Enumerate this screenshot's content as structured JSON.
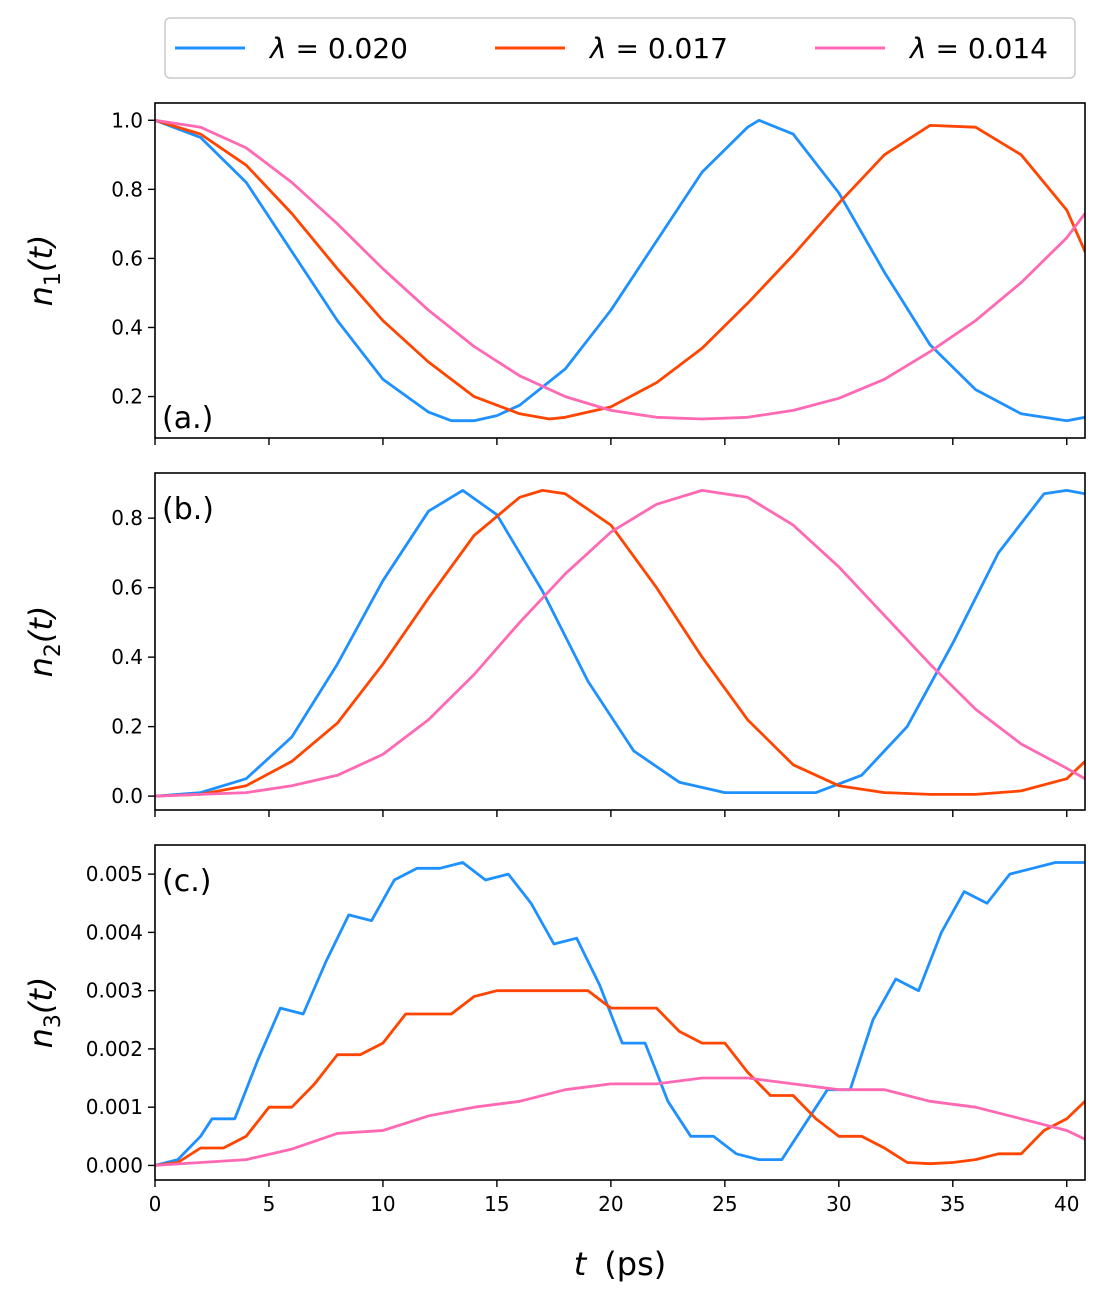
{
  "colors": {
    "s1": "#1E90FF",
    "s2": "#FF4500",
    "s3": "#FF69B4"
  },
  "chart_data": {
    "type": "line",
    "x_label_var": "t",
    "x_label_unit": "(ps)",
    "xlim": [
      0,
      40.8
    ],
    "x_ticks": [
      "0",
      "5",
      "10",
      "15",
      "20",
      "25",
      "30",
      "35",
      "40"
    ],
    "legend": {
      "placement": "top-center",
      "entries": [
        {
          "var": "λ",
          "text": " = 0.020"
        },
        {
          "var": "λ",
          "text": " = 0.017"
        },
        {
          "var": "λ",
          "text": " = 0.014"
        }
      ]
    },
    "panels": [
      {
        "label": "(a.)",
        "ylabel": {
          "var": "n",
          "sub": "1",
          "arg": "(t)"
        },
        "ylim": [
          0.08,
          1.05
        ],
        "y_ticks": [
          "0.2",
          "0.4",
          "0.6",
          "0.8",
          "1.0"
        ],
        "series": [
          {
            "name": "λ = 0.020",
            "x": [
              0,
              2,
              4,
              6,
              8,
              10,
              12,
              13,
              14,
              15,
              16,
              18,
              20,
              22,
              24,
              26,
              26.5,
              28,
              30,
              32,
              34,
              36,
              38,
              40,
              40.8
            ],
            "y": [
              1.0,
              0.95,
              0.82,
              0.62,
              0.42,
              0.25,
              0.155,
              0.13,
              0.13,
              0.145,
              0.175,
              0.28,
              0.45,
              0.65,
              0.85,
              0.98,
              1.0,
              0.96,
              0.79,
              0.56,
              0.35,
              0.22,
              0.15,
              0.13,
              0.14
            ]
          },
          {
            "name": "λ = 0.017",
            "x": [
              0,
              2,
              4,
              6,
              8,
              10,
              12,
              14,
              16,
              17.3,
              18,
              20,
              22,
              24,
              26,
              28,
              30,
              32,
              34,
              36,
              38,
              40,
              40.8
            ],
            "y": [
              1.0,
              0.96,
              0.87,
              0.73,
              0.57,
              0.42,
              0.3,
              0.2,
              0.15,
              0.135,
              0.14,
              0.17,
              0.24,
              0.34,
              0.47,
              0.61,
              0.76,
              0.9,
              0.985,
              0.98,
              0.9,
              0.74,
              0.62
            ]
          },
          {
            "name": "λ = 0.014",
            "x": [
              0,
              2,
              4,
              6,
              8,
              10,
              12,
              14,
              16,
              18,
              20,
              22,
              24,
              26,
              28,
              30,
              32,
              34,
              36,
              38,
              40,
              40.8
            ],
            "y": [
              1.0,
              0.98,
              0.92,
              0.82,
              0.7,
              0.57,
              0.45,
              0.345,
              0.26,
              0.2,
              0.16,
              0.14,
              0.135,
              0.14,
              0.16,
              0.195,
              0.25,
              0.33,
              0.42,
              0.53,
              0.66,
              0.73
            ]
          }
        ]
      },
      {
        "label": "(b.)",
        "ylabel": {
          "var": "n",
          "sub": "2",
          "arg": "(t)"
        },
        "ylim": [
          -0.04,
          0.93
        ],
        "y_ticks": [
          "0.0",
          "0.2",
          "0.4",
          "0.6",
          "0.8"
        ],
        "series": [
          {
            "name": "λ = 0.020",
            "x": [
              0,
              2,
              4,
              6,
              8,
              10,
              12,
              13.5,
              15,
              17,
              19,
              21,
              23,
              25,
              27,
              29,
              31,
              33,
              35,
              37,
              39,
              40,
              40.8
            ],
            "y": [
              0.0,
              0.01,
              0.05,
              0.17,
              0.38,
              0.62,
              0.82,
              0.88,
              0.81,
              0.59,
              0.33,
              0.13,
              0.04,
              0.01,
              0.01,
              0.01,
              0.06,
              0.2,
              0.44,
              0.7,
              0.87,
              0.88,
              0.87
            ]
          },
          {
            "name": "λ = 0.017",
            "x": [
              0,
              2,
              4,
              6,
              8,
              10,
              12,
              14,
              16,
              17,
              18,
              20,
              22,
              24,
              26,
              28,
              30,
              32,
              34,
              36,
              38,
              40,
              40.8
            ],
            "y": [
              0.0,
              0.005,
              0.03,
              0.1,
              0.21,
              0.38,
              0.57,
              0.75,
              0.86,
              0.88,
              0.87,
              0.78,
              0.6,
              0.4,
              0.22,
              0.09,
              0.03,
              0.01,
              0.005,
              0.005,
              0.015,
              0.05,
              0.1
            ]
          },
          {
            "name": "λ = 0.014",
            "x": [
              0,
              2,
              4,
              6,
              8,
              10,
              12,
              14,
              16,
              18,
              20,
              22,
              24,
              26,
              28,
              30,
              32,
              34,
              36,
              38,
              40,
              40.8
            ],
            "y": [
              0.0,
              0.005,
              0.01,
              0.03,
              0.06,
              0.12,
              0.22,
              0.35,
              0.5,
              0.64,
              0.76,
              0.84,
              0.88,
              0.86,
              0.78,
              0.66,
              0.52,
              0.38,
              0.25,
              0.15,
              0.08,
              0.05
            ]
          }
        ]
      },
      {
        "label": "(c.)",
        "ylabel": {
          "var": "n",
          "sub": "3",
          "arg": "(t)"
        },
        "ylim": [
          -0.00025,
          0.0055
        ],
        "y_ticks": [
          "0.000",
          "0.001",
          "0.002",
          "0.003",
          "0.004",
          "0.005"
        ],
        "series": [
          {
            "name": "λ = 0.020",
            "x": [
              0,
              1,
              2,
              2.5,
              3.5,
              4.5,
              5.5,
              6.5,
              7.5,
              8.5,
              9.5,
              10.5,
              11.5,
              12.5,
              13.5,
              14.5,
              15.5,
              16.5,
              17.5,
              18.5,
              19.5,
              20.5,
              21.5,
              22.5,
              23.5,
              24.5,
              25.5,
              26.5,
              27.5,
              28.5,
              29.5,
              30.5,
              31.5,
              32.5,
              33.5,
              34.5,
              35.5,
              36.5,
              37.5,
              38.5,
              39.5,
              40.8
            ],
            "y": [
              0,
              0.0001,
              0.0005,
              0.0008,
              0.0008,
              0.0018,
              0.0027,
              0.0026,
              0.0035,
              0.0043,
              0.0042,
              0.0049,
              0.0051,
              0.0051,
              0.0052,
              0.0049,
              0.005,
              0.0045,
              0.0038,
              0.0039,
              0.0031,
              0.0021,
              0.0021,
              0.0011,
              0.0005,
              0.0005,
              0.0002,
              0.0001,
              0.0001,
              0.0007,
              0.0013,
              0.0013,
              0.0025,
              0.0032,
              0.003,
              0.004,
              0.0047,
              0.0045,
              0.005,
              0.0051,
              0.0052,
              0.0052
            ]
          },
          {
            "name": "λ = 0.017",
            "x": [
              0,
              1,
              2,
              3,
              4,
              5,
              6,
              7,
              8,
              9,
              10,
              11,
              12,
              13,
              14,
              15,
              16,
              17,
              18,
              19,
              20,
              21,
              22,
              23,
              24,
              25,
              26,
              27,
              28,
              29,
              30,
              31,
              32,
              33,
              34,
              35,
              36,
              37,
              38,
              39,
              40,
              40.8
            ],
            "y": [
              0,
              5e-05,
              0.0003,
              0.0003,
              0.0005,
              0.001,
              0.001,
              0.0014,
              0.0019,
              0.0019,
              0.0021,
              0.0026,
              0.0026,
              0.0026,
              0.0029,
              0.003,
              0.003,
              0.003,
              0.003,
              0.003,
              0.0027,
              0.0027,
              0.0027,
              0.0023,
              0.0021,
              0.0021,
              0.0016,
              0.0012,
              0.0012,
              0.0008,
              0.0005,
              0.0005,
              0.0003,
              5e-05,
              3e-05,
              5e-05,
              0.0001,
              0.0002,
              0.0002,
              0.0006,
              0.0008,
              0.0011
            ]
          },
          {
            "name": "λ = 0.014",
            "x": [
              0,
              2,
              4,
              6,
              8,
              10,
              12,
              14,
              16,
              18,
              20,
              22,
              24,
              26,
              28,
              30,
              32,
              34,
              36,
              38,
              40,
              40.8
            ],
            "y": [
              0,
              5e-05,
              0.0001,
              0.00028,
              0.00055,
              0.0006,
              0.00085,
              0.001,
              0.0011,
              0.0013,
              0.0014,
              0.0014,
              0.0015,
              0.0015,
              0.0014,
              0.0013,
              0.0013,
              0.0011,
              0.001,
              0.0008,
              0.0006,
              0.00045
            ]
          }
        ]
      }
    ]
  }
}
